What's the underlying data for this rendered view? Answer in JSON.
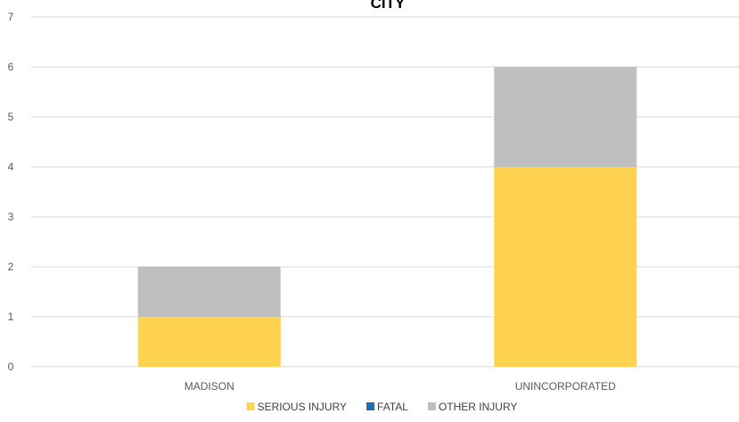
{
  "chart_data": {
    "type": "bar",
    "stacked": true,
    "title": "CITY",
    "categories": [
      "MADISON",
      "UNINCORPORATED"
    ],
    "series": [
      {
        "name": "SERIOUS INJURY",
        "color": "#FFD34F",
        "values": [
          1,
          4
        ]
      },
      {
        "name": "FATAL",
        "color": "#1F6CB0",
        "values": [
          0,
          0
        ]
      },
      {
        "name": "OTHER INJURY",
        "color": "#BFBFBF",
        "values": [
          1,
          2
        ]
      }
    ],
    "ylim": [
      0,
      7
    ],
    "yticks": [
      0,
      1,
      2,
      3,
      4,
      5,
      6,
      7
    ],
    "grid": true,
    "legend": "bottom",
    "gridColor": "#D9D9D9"
  }
}
